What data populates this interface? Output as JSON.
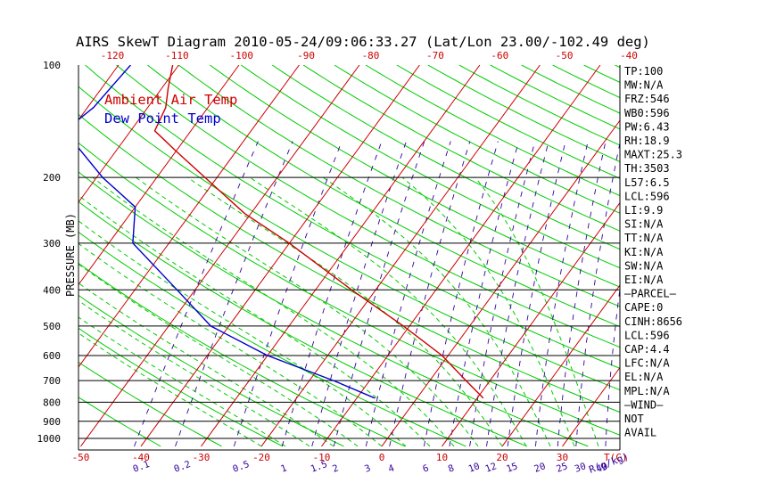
{
  "title": "AIRS SkewT Diagram 2010-05-24/09:06:33.27 (Lat/Lon 23.00/-102.49 deg)",
  "colors": {
    "frame": "#000000",
    "ambient": "#cc0000",
    "dew": "#0000cc",
    "green": "#00cc00",
    "mixing": "#330099",
    "bottom_labels": "#cc0000",
    "mixing_labels": "#330099",
    "top_labels": "#cc0000"
  },
  "chart_data": {
    "type": "line",
    "title": "AIRS SkewT Diagram 2010-05-24/09:06:33.27 (Lat/Lon 23.00/-102.49 deg)",
    "ylabel": "PRESSURE (MB)",
    "y_scale": "log",
    "ylim": [
      1050,
      100
    ],
    "xlim": [
      -52,
      38
    ],
    "pressure_ticks": [
      100,
      200,
      300,
      400,
      500,
      600,
      700,
      800,
      900,
      1000
    ],
    "isobars": [
      200,
      300,
      400,
      500,
      600,
      700,
      800,
      900,
      1000
    ],
    "bottom_temp_ticks": [
      -50,
      -40,
      -30,
      -20,
      -10,
      0,
      10,
      20,
      30
    ],
    "bottom_unit_label": "T(C)",
    "top_temp_ticks": [
      -120,
      -110,
      -100,
      -90,
      -80,
      -70,
      -60,
      -50,
      -40
    ],
    "mixing_ratio_labels": [
      "0.1",
      "0.2",
      "0.5",
      "1",
      "1.5",
      "2",
      "3",
      "4",
      "6",
      "8",
      "10",
      "12",
      "15",
      "20",
      "25",
      "30",
      "40"
    ],
    "mixing_unit_label": "R(g/kg)",
    "legend": [
      "Ambient Air Temp",
      "Dew Point Temp"
    ],
    "series": [
      {
        "name": "Ambient Air Temp",
        "points": [
          {
            "p": 100,
            "t": -81
          },
          {
            "p": 115,
            "t": -79
          },
          {
            "p": 130,
            "t": -77
          },
          {
            "p": 150,
            "t": -76
          },
          {
            "p": 170,
            "t": -70
          },
          {
            "p": 200,
            "t": -62
          },
          {
            "p": 250,
            "t": -51
          },
          {
            "p": 300,
            "t": -40
          },
          {
            "p": 400,
            "t": -24
          },
          {
            "p": 500,
            "t": -11
          },
          {
            "p": 600,
            "t": -1
          },
          {
            "p": 700,
            "t": 6
          },
          {
            "p": 780,
            "t": 11
          }
        ]
      },
      {
        "name": "Dew Point Temp",
        "points": [
          {
            "p": 100,
            "t": -88
          },
          {
            "p": 130,
            "t": -89
          },
          {
            "p": 150,
            "t": -91
          },
          {
            "p": 200,
            "t": -79
          },
          {
            "p": 240,
            "t": -70
          },
          {
            "p": 300,
            "t": -66
          },
          {
            "p": 400,
            "t": -53
          },
          {
            "p": 500,
            "t": -43
          },
          {
            "p": 600,
            "t": -30
          },
          {
            "p": 700,
            "t": -16
          },
          {
            "p": 780,
            "t": -7
          }
        ]
      }
    ],
    "side_panel": [
      "TP:100",
      "MW:N/A",
      "FRZ:546",
      "WB0:596",
      "PW:6.43",
      "RH:18.9",
      "MAXT:25.3",
      "TH:3503",
      "L57:6.5",
      "LCL:596",
      "LI:9.9",
      "SI:N/A",
      "TT:N/A",
      "KI:N/A",
      "SW:N/A",
      "EI:N/A",
      "—PARCEL—",
      "CAPE:0",
      "CINH:8656",
      "LCL:596",
      "CAP:4.4",
      "LFC:N/A",
      "EL:N/A",
      "MPL:N/A",
      "—WIND—",
      "NOT",
      "AVAIL"
    ],
    "grid": true
  }
}
